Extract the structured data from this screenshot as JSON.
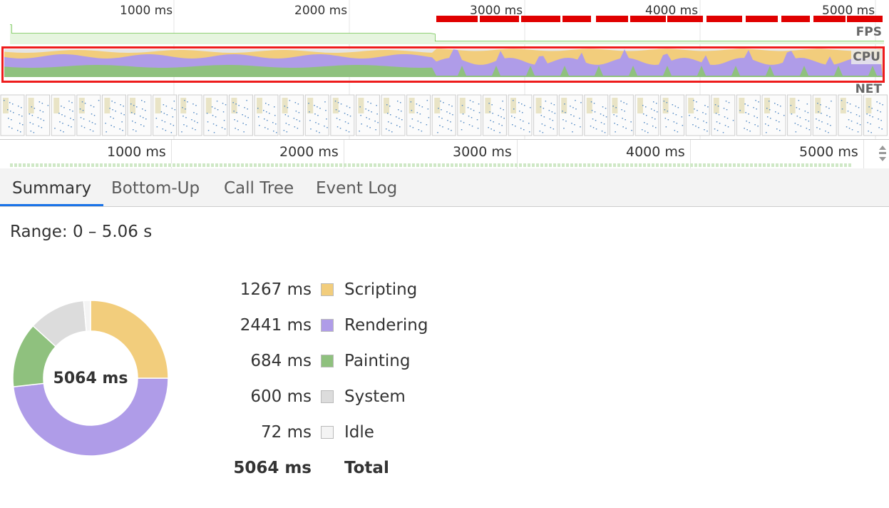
{
  "overview": {
    "ticks": [
      "1000 ms",
      "2000 ms",
      "3000 ms",
      "4000 ms",
      "5000 ms"
    ],
    "tracks": {
      "fps": "FPS",
      "cpu": "CPU",
      "net": "NET"
    }
  },
  "ruler": {
    "ticks": [
      "1000 ms",
      "2000 ms",
      "3000 ms",
      "4000 ms",
      "5000 ms"
    ]
  },
  "tabs": [
    {
      "label": "Summary",
      "active": true
    },
    {
      "label": "Bottom-Up",
      "active": false
    },
    {
      "label": "Call Tree",
      "active": false
    },
    {
      "label": "Event Log",
      "active": false
    }
  ],
  "summary": {
    "range": "Range: 0 – 5.06 s",
    "total_value": "5064 ms",
    "total_label": "Total",
    "categories": [
      {
        "value": "1267 ms",
        "label": "Scripting",
        "ms": 1267,
        "color": "#f2cd7c"
      },
      {
        "value": "2441 ms",
        "label": "Rendering",
        "ms": 2441,
        "color": "#af9ce8"
      },
      {
        "value": "684 ms",
        "label": "Painting",
        "ms": 684,
        "color": "#8fc17e"
      },
      {
        "value": "600 ms",
        "label": "System",
        "ms": 600,
        "color": "#dcdcdc"
      },
      {
        "value": "72 ms",
        "label": "Idle",
        "ms": 72,
        "color": "#f4f4f4"
      }
    ]
  },
  "colors": {
    "fps": "#6cc24a",
    "long_frame": "#e00000",
    "highlight": "#ee1c1c",
    "scripting": "#f2cd7c",
    "rendering": "#af9ce8",
    "painting": "#8fc17e",
    "active_tab": "#1a73e8"
  }
}
